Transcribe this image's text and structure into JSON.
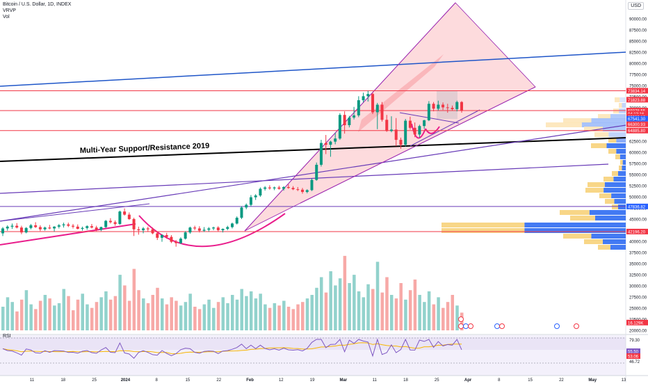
{
  "header": {
    "title": "Bitcoin / U.S. Dollar, 1D, INDEX",
    "indicator_1": "VRVP",
    "indicator_2": "Vol",
    "currency": "USD"
  },
  "rsi_panel": {
    "title": "RSI"
  },
  "chart_data": {
    "type": "candlestick",
    "price_axis": {
      "ticks": [
        "90000.00",
        "87500.00",
        "85000.00",
        "82500.00",
        "80000.00",
        "77500.00",
        "75000.00",
        "72500.00",
        "70000.00",
        "67500.00",
        "65000.00",
        "62500.00",
        "60000.00",
        "57500.00",
        "55000.00",
        "52500.00",
        "50000.00",
        "47500.00",
        "45000.00",
        "42500.00",
        "40000.00",
        "37500.00",
        "35000.00",
        "32500.00",
        "30000.00",
        "27500.00",
        "25000.00",
        "22500.00",
        "20000.00"
      ],
      "range": [
        19500,
        92500
      ]
    },
    "time_axis": {
      "ticks": [
        "11",
        "18",
        "25",
        "2024",
        "8",
        "15",
        "22",
        "Feb",
        "12",
        "19",
        "Mar",
        "11",
        "18",
        "25",
        "Apr",
        "8",
        "15",
        "22",
        "May",
        "13"
      ]
    },
    "price_labels": [
      {
        "value": "73834.14",
        "price": 73834,
        "color": "#f23645"
      },
      {
        "value": "71823.88",
        "price": 71824,
        "color": "#f23645"
      },
      {
        "value": "69378.55",
        "price": 69379,
        "color": "#f23645"
      },
      {
        "value": "04:13:16",
        "price": 68700,
        "color": "#f23645"
      },
      {
        "value": "69080.16",
        "price": 68000,
        "color": "#f23645"
      },
      {
        "value": "67541.30",
        "price": 67541,
        "color": "#2962ff"
      },
      {
        "value": "66300.93",
        "price": 66301,
        "color": "#f23645"
      },
      {
        "value": "64885.80",
        "price": 64886,
        "color": "#f23645"
      },
      {
        "value": "47836.82",
        "price": 47837,
        "color": "#2962ff"
      },
      {
        "value": "42196.20",
        "price": 42196,
        "color": "#f23645"
      },
      {
        "value": "16.129K",
        "price": 21750,
        "color": "#f23645"
      }
    ],
    "annotation": "Multi-Year Support/Resistance 2019",
    "horizontal_levels": [
      73834,
      69379,
      64886,
      47837,
      42196
    ],
    "candles": [
      [
        41800,
        43200,
        41200,
        42900
      ],
      [
        42900,
        43600,
        42400,
        43300
      ],
      [
        43300,
        44000,
        42800,
        43500
      ],
      [
        43500,
        44100,
        42900,
        43100
      ],
      [
        43100,
        43500,
        41600,
        42000
      ],
      [
        42000,
        43200,
        41800,
        43000
      ],
      [
        43000,
        43900,
        42700,
        43600
      ],
      [
        43600,
        44300,
        43000,
        43200
      ],
      [
        43200,
        43600,
        42300,
        42700
      ],
      [
        42700,
        43300,
        42400,
        43100
      ],
      [
        43100,
        43700,
        42700,
        42900
      ],
      [
        42900,
        43400,
        42200,
        43300
      ],
      [
        43300,
        43900,
        42900,
        43600
      ],
      [
        43600,
        44200,
        43100,
        43800
      ],
      [
        43800,
        44200,
        43200,
        43500
      ],
      [
        43500,
        43900,
        42900,
        43300
      ],
      [
        43300,
        43800,
        42700,
        42800
      ],
      [
        42800,
        43300,
        42400,
        43000
      ],
      [
        43000,
        43600,
        42600,
        43400
      ],
      [
        43400,
        43900,
        42900,
        43100
      ],
      [
        43100,
        43500,
        42300,
        42600
      ],
      [
        42600,
        43300,
        42300,
        43200
      ],
      [
        43200,
        44800,
        43000,
        44600
      ],
      [
        44600,
        45200,
        44000,
        44300
      ],
      [
        44300,
        44700,
        43500,
        43900
      ],
      [
        43900,
        46900,
        43700,
        46700
      ],
      [
        46700,
        47400,
        45800,
        46000
      ],
      [
        46000,
        46500,
        44800,
        45000
      ],
      [
        45000,
        45300,
        41200,
        42700
      ],
      [
        42700,
        43300,
        41500,
        42500
      ],
      [
        42500,
        43200,
        41800,
        42900
      ],
      [
        42900,
        43300,
        42100,
        42700
      ],
      [
        42700,
        43100,
        41600,
        41800
      ],
      [
        41800,
        42100,
        40300,
        40800
      ],
      [
        40800,
        41600,
        39900,
        41400
      ],
      [
        41400,
        41900,
        40600,
        41000
      ],
      [
        41000,
        41400,
        39600,
        39900
      ],
      [
        39900,
        40300,
        38800,
        39600
      ],
      [
        39600,
        40900,
        39400,
        40600
      ],
      [
        40600,
        42300,
        40400,
        42000
      ],
      [
        42000,
        43300,
        41700,
        43100
      ],
      [
        43100,
        43500,
        42500,
        42900
      ],
      [
        42900,
        43400,
        42000,
        42400
      ],
      [
        42400,
        43200,
        42100,
        42600
      ],
      [
        42600,
        43200,
        42200,
        42900
      ],
      [
        42900,
        43300,
        42500,
        43100
      ],
      [
        43100,
        43400,
        42200,
        42500
      ],
      [
        42500,
        42900,
        42000,
        42800
      ],
      [
        42800,
        43500,
        42500,
        43200
      ],
      [
        43200,
        44200,
        42900,
        44000
      ],
      [
        44000,
        45600,
        43800,
        45300
      ],
      [
        45300,
        47900,
        45000,
        47600
      ],
      [
        47600,
        48500,
        47200,
        48200
      ],
      [
        48200,
        50400,
        47900,
        49900
      ],
      [
        49900,
        50600,
        49300,
        50300
      ],
      [
        50300,
        52100,
        50000,
        51800
      ],
      [
        51800,
        52400,
        51400,
        52100
      ],
      [
        52100,
        52600,
        51600,
        51900
      ],
      [
        51900,
        52300,
        51500,
        52100
      ],
      [
        52100,
        52500,
        51600,
        51800
      ],
      [
        51800,
        52400,
        51400,
        52200
      ],
      [
        52200,
        52800,
        51800,
        52000
      ],
      [
        52000,
        52400,
        51500,
        51700
      ],
      [
        51700,
        52200,
        51300,
        51600
      ],
      [
        51600,
        52000,
        50700,
        51100
      ],
      [
        51100,
        51700,
        50800,
        51500
      ],
      [
        51500,
        54100,
        51300,
        53800
      ],
      [
        53800,
        57700,
        53600,
        57200
      ],
      [
        57200,
        62800,
        56800,
        62100
      ],
      [
        62100,
        63900,
        59600,
        61700
      ],
      [
        61700,
        62600,
        59000,
        62400
      ],
      [
        62400,
        64400,
        61800,
        63100
      ],
      [
        63100,
        68800,
        62800,
        68400
      ],
      [
        68400,
        69200,
        64200,
        66100
      ],
      [
        66100,
        68200,
        65600,
        67800
      ],
      [
        67800,
        70200,
        67400,
        68300
      ],
      [
        68300,
        72600,
        67900,
        71700
      ],
      [
        71700,
        73400,
        71200,
        72600
      ],
      [
        72600,
        73800,
        71400,
        73100
      ],
      [
        73100,
        73400,
        68600,
        69000
      ],
      [
        69000,
        71100,
        65200,
        70700
      ],
      [
        70700,
        71300,
        66900,
        67300
      ],
      [
        67300,
        68400,
        64600,
        64800
      ],
      [
        64800,
        68100,
        64500,
        65100
      ],
      [
        65100,
        67700,
        61400,
        62800
      ],
      [
        62800,
        63300,
        60800,
        61700
      ],
      [
        61700,
        67500,
        61300,
        67100
      ],
      [
        67100,
        68000,
        65100,
        65500
      ],
      [
        65500,
        66700,
        63400,
        64000
      ],
      [
        64000,
        66200,
        63300,
        65900
      ],
      [
        65900,
        67300,
        65300,
        67200
      ],
      [
        67200,
        71500,
        67000,
        70900
      ],
      [
        70900,
        71300,
        69200,
        69800
      ],
      [
        69800,
        71600,
        69400,
        70700
      ],
      [
        70700,
        71200,
        69500,
        70100
      ],
      [
        70100,
        70900,
        68900,
        70000
      ],
      [
        70000,
        70500,
        69400,
        69700
      ],
      [
        69700,
        71600,
        69200,
        71300
      ],
      [
        71300,
        71500,
        68900,
        69380
      ]
    ],
    "volume_values": [
      20,
      28,
      24,
      16,
      26,
      34,
      22,
      18,
      25,
      30,
      27,
      21,
      23,
      35,
      29,
      17,
      26,
      31,
      22,
      19,
      24,
      28,
      33,
      26,
      29,
      47,
      38,
      25,
      52,
      34,
      27,
      23,
      30,
      36,
      27,
      22,
      28,
      25,
      21,
      24,
      31,
      20,
      18,
      22,
      26,
      19,
      24,
      28,
      23,
      30,
      26,
      35,
      29,
      33,
      27,
      31,
      22,
      19,
      23,
      21,
      25,
      20,
      18,
      22,
      24,
      27,
      30,
      36,
      45,
      32,
      50,
      38,
      44,
      63,
      40,
      47,
      33,
      28,
      39,
      35,
      58,
      32,
      45,
      30,
      27,
      40,
      26,
      34,
      43,
      30,
      24,
      33,
      22,
      28,
      19,
      24,
      30,
      21,
      15
    ],
    "rsi": {
      "ticks": [
        "79.30",
        "55.50",
        "46.72"
      ],
      "current": [
        "55.50",
        "53.06"
      ]
    }
  }
}
